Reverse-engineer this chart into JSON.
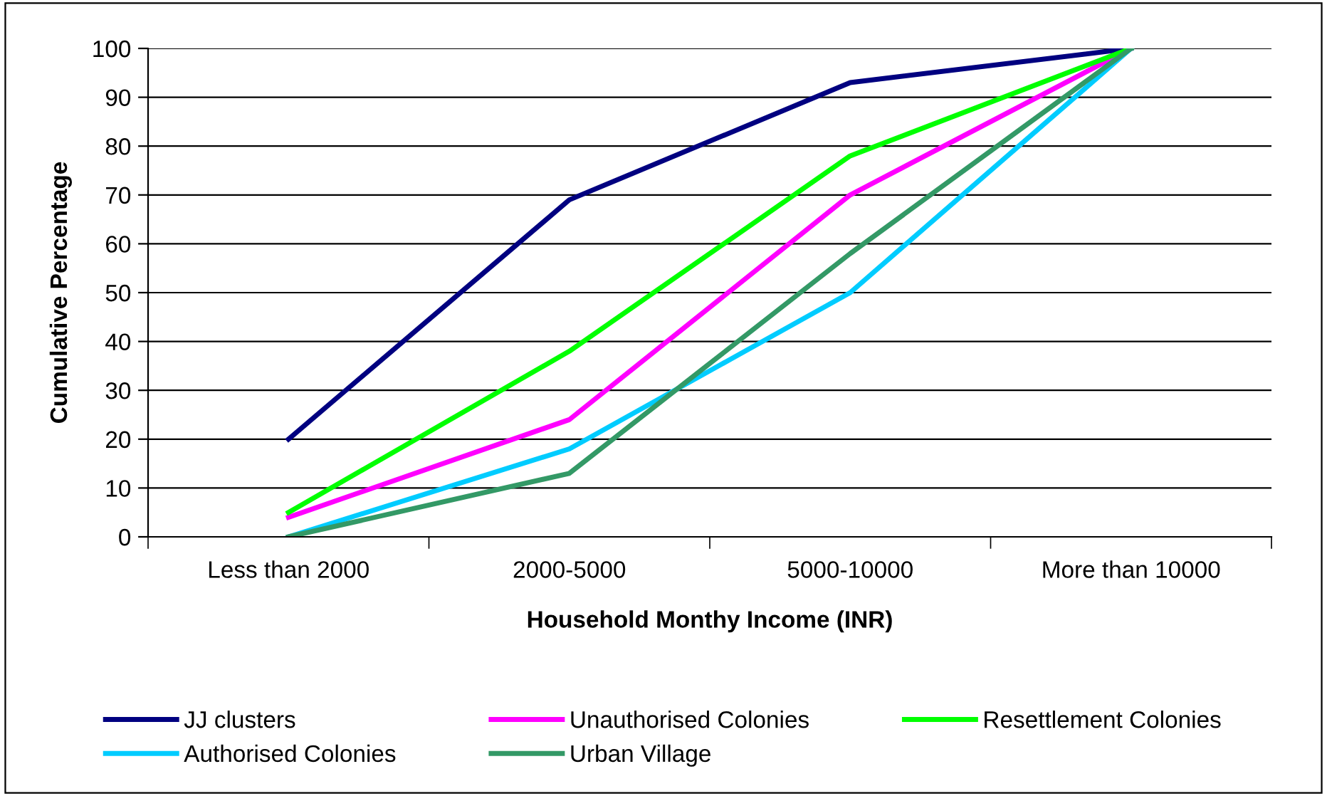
{
  "chart_data": {
    "type": "line",
    "xlabel": "Household Monthy Income (INR)",
    "ylabel": "Cumulative Percentage",
    "categories": [
      "Less than 2000",
      "2000-5000",
      "5000-10000",
      "More than 10000"
    ],
    "series": [
      {
        "name": "JJ clusters",
        "color": "#000080",
        "values": [
          20,
          69,
          93,
          100
        ]
      },
      {
        "name": "Unauthorised Colonies",
        "color": "#ff00ff",
        "values": [
          4,
          24,
          70,
          100
        ]
      },
      {
        "name": "Resettlement Colonies",
        "color": "#00ff00",
        "values": [
          5,
          38,
          78,
          100
        ]
      },
      {
        "name": "Authorised Colonies",
        "color": "#00ccff",
        "values": [
          0,
          18,
          50,
          100
        ]
      },
      {
        "name": "Urban Village",
        "color": "#339966",
        "values": [
          0,
          13,
          58,
          100
        ]
      }
    ],
    "ylim": [
      0,
      100
    ],
    "yticks": [
      0,
      10,
      20,
      30,
      40,
      50,
      60,
      70,
      80,
      90,
      100
    ],
    "grid": "y",
    "legend": "bottom",
    "marker": "none",
    "line_style": "solid"
  }
}
